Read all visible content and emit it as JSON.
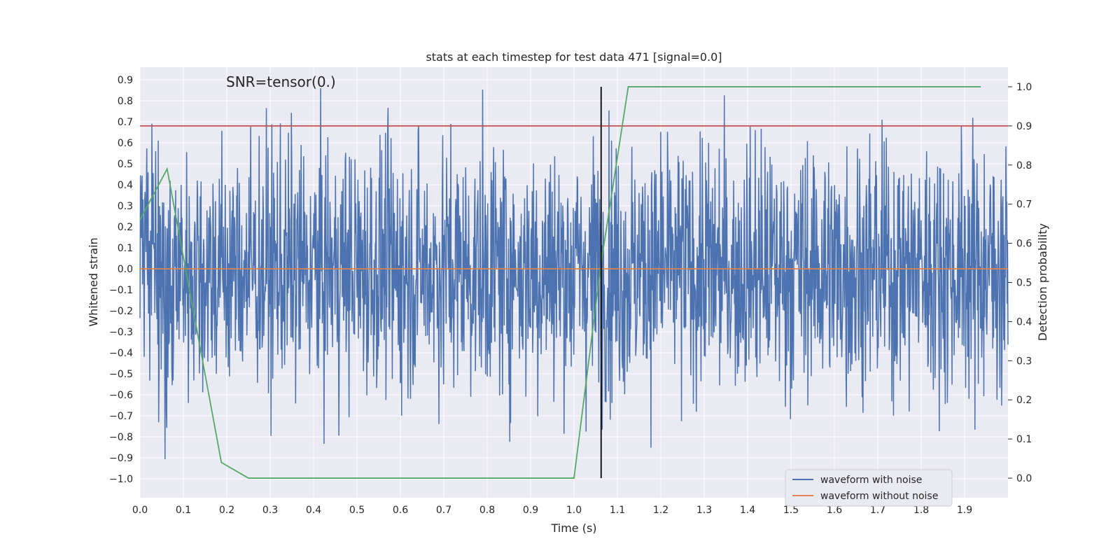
{
  "chart_data": {
    "type": "line",
    "title": "stats at each timestep for test data 471 [signal=0.0]",
    "xlabel": "Time (s)",
    "ylabel": "Whitened strain",
    "y2label": "Detection probability",
    "xlim": [
      0.0,
      2.0
    ],
    "ylim": [
      -1.09,
      0.96
    ],
    "y2lim": [
      -0.05,
      1.05
    ],
    "xticks": [
      "0.0",
      "0.1",
      "0.2",
      "0.3",
      "0.4",
      "0.5",
      "0.6",
      "0.7",
      "0.8",
      "0.9",
      "1.0",
      "1.1",
      "1.2",
      "1.3",
      "1.4",
      "1.5",
      "1.6",
      "1.7",
      "1.8",
      "1.9"
    ],
    "yticks": [
      "0.9",
      "0.8",
      "0.7",
      "0.6",
      "0.5",
      "0.4",
      "0.3",
      "0.2",
      "0.1",
      "0.0",
      "−0.1",
      "−0.2",
      "−0.3",
      "−0.4",
      "−0.5",
      "−0.6",
      "−0.7",
      "−0.8",
      "−0.9",
      "−1.0"
    ],
    "y2ticks": [
      "0.0",
      "0.1",
      "0.2",
      "0.3",
      "0.4",
      "0.5",
      "0.6",
      "0.7",
      "0.8",
      "0.9",
      "1.0"
    ],
    "annotation": "SNR=tensor(0.)",
    "grid": true,
    "legend_position": "bottom-right",
    "noise_waveform": {
      "name": "waveform with noise",
      "color": "#4c72b0",
      "samples": 2048,
      "x_range": [
        0.0,
        2.0
      ],
      "amplitude_std": 0.3,
      "peak_max": 0.86,
      "peak_min": -1.0
    },
    "series": [
      {
        "name": "waveform without noise",
        "axis": "left",
        "color": "#dd8452",
        "x": [
          0.0,
          2.0
        ],
        "values": [
          0.0,
          0.0
        ]
      },
      {
        "name": "detection probability",
        "axis": "right",
        "color": "#55a868",
        "x": [
          0.0,
          0.0625,
          0.1875,
          0.25,
          0.3125,
          0.375,
          0.4375,
          0.5,
          0.5625,
          0.625,
          0.6875,
          0.75,
          0.8125,
          0.875,
          0.9375,
          1.0,
          1.0625,
          1.125,
          1.1875,
          1.25,
          1.3125,
          1.375,
          1.4375,
          1.5,
          1.5625,
          1.625,
          1.6875,
          1.75,
          1.8125,
          1.875,
          1.9375
        ],
        "values": [
          0.66,
          0.79,
          0.04,
          0.0,
          0.0,
          0.0,
          0.0,
          0.0,
          0.0,
          0.0,
          0.0,
          0.0,
          0.0,
          0.0,
          0.0,
          0.0,
          0.55,
          1.0,
          1.0,
          1.0,
          1.0,
          1.0,
          1.0,
          1.0,
          1.0,
          1.0,
          1.0,
          1.0,
          1.0,
          1.0,
          1.0
        ]
      }
    ],
    "threshold_line": {
      "axis": "right",
      "value": 0.9,
      "color": "#c44e52"
    },
    "marker_line": {
      "x": 1.0625,
      "color": "#000000"
    },
    "legend": [
      {
        "label": "waveform with noise",
        "color": "#4c72b0"
      },
      {
        "label": "waveform without noise",
        "color": "#dd8452"
      }
    ]
  }
}
